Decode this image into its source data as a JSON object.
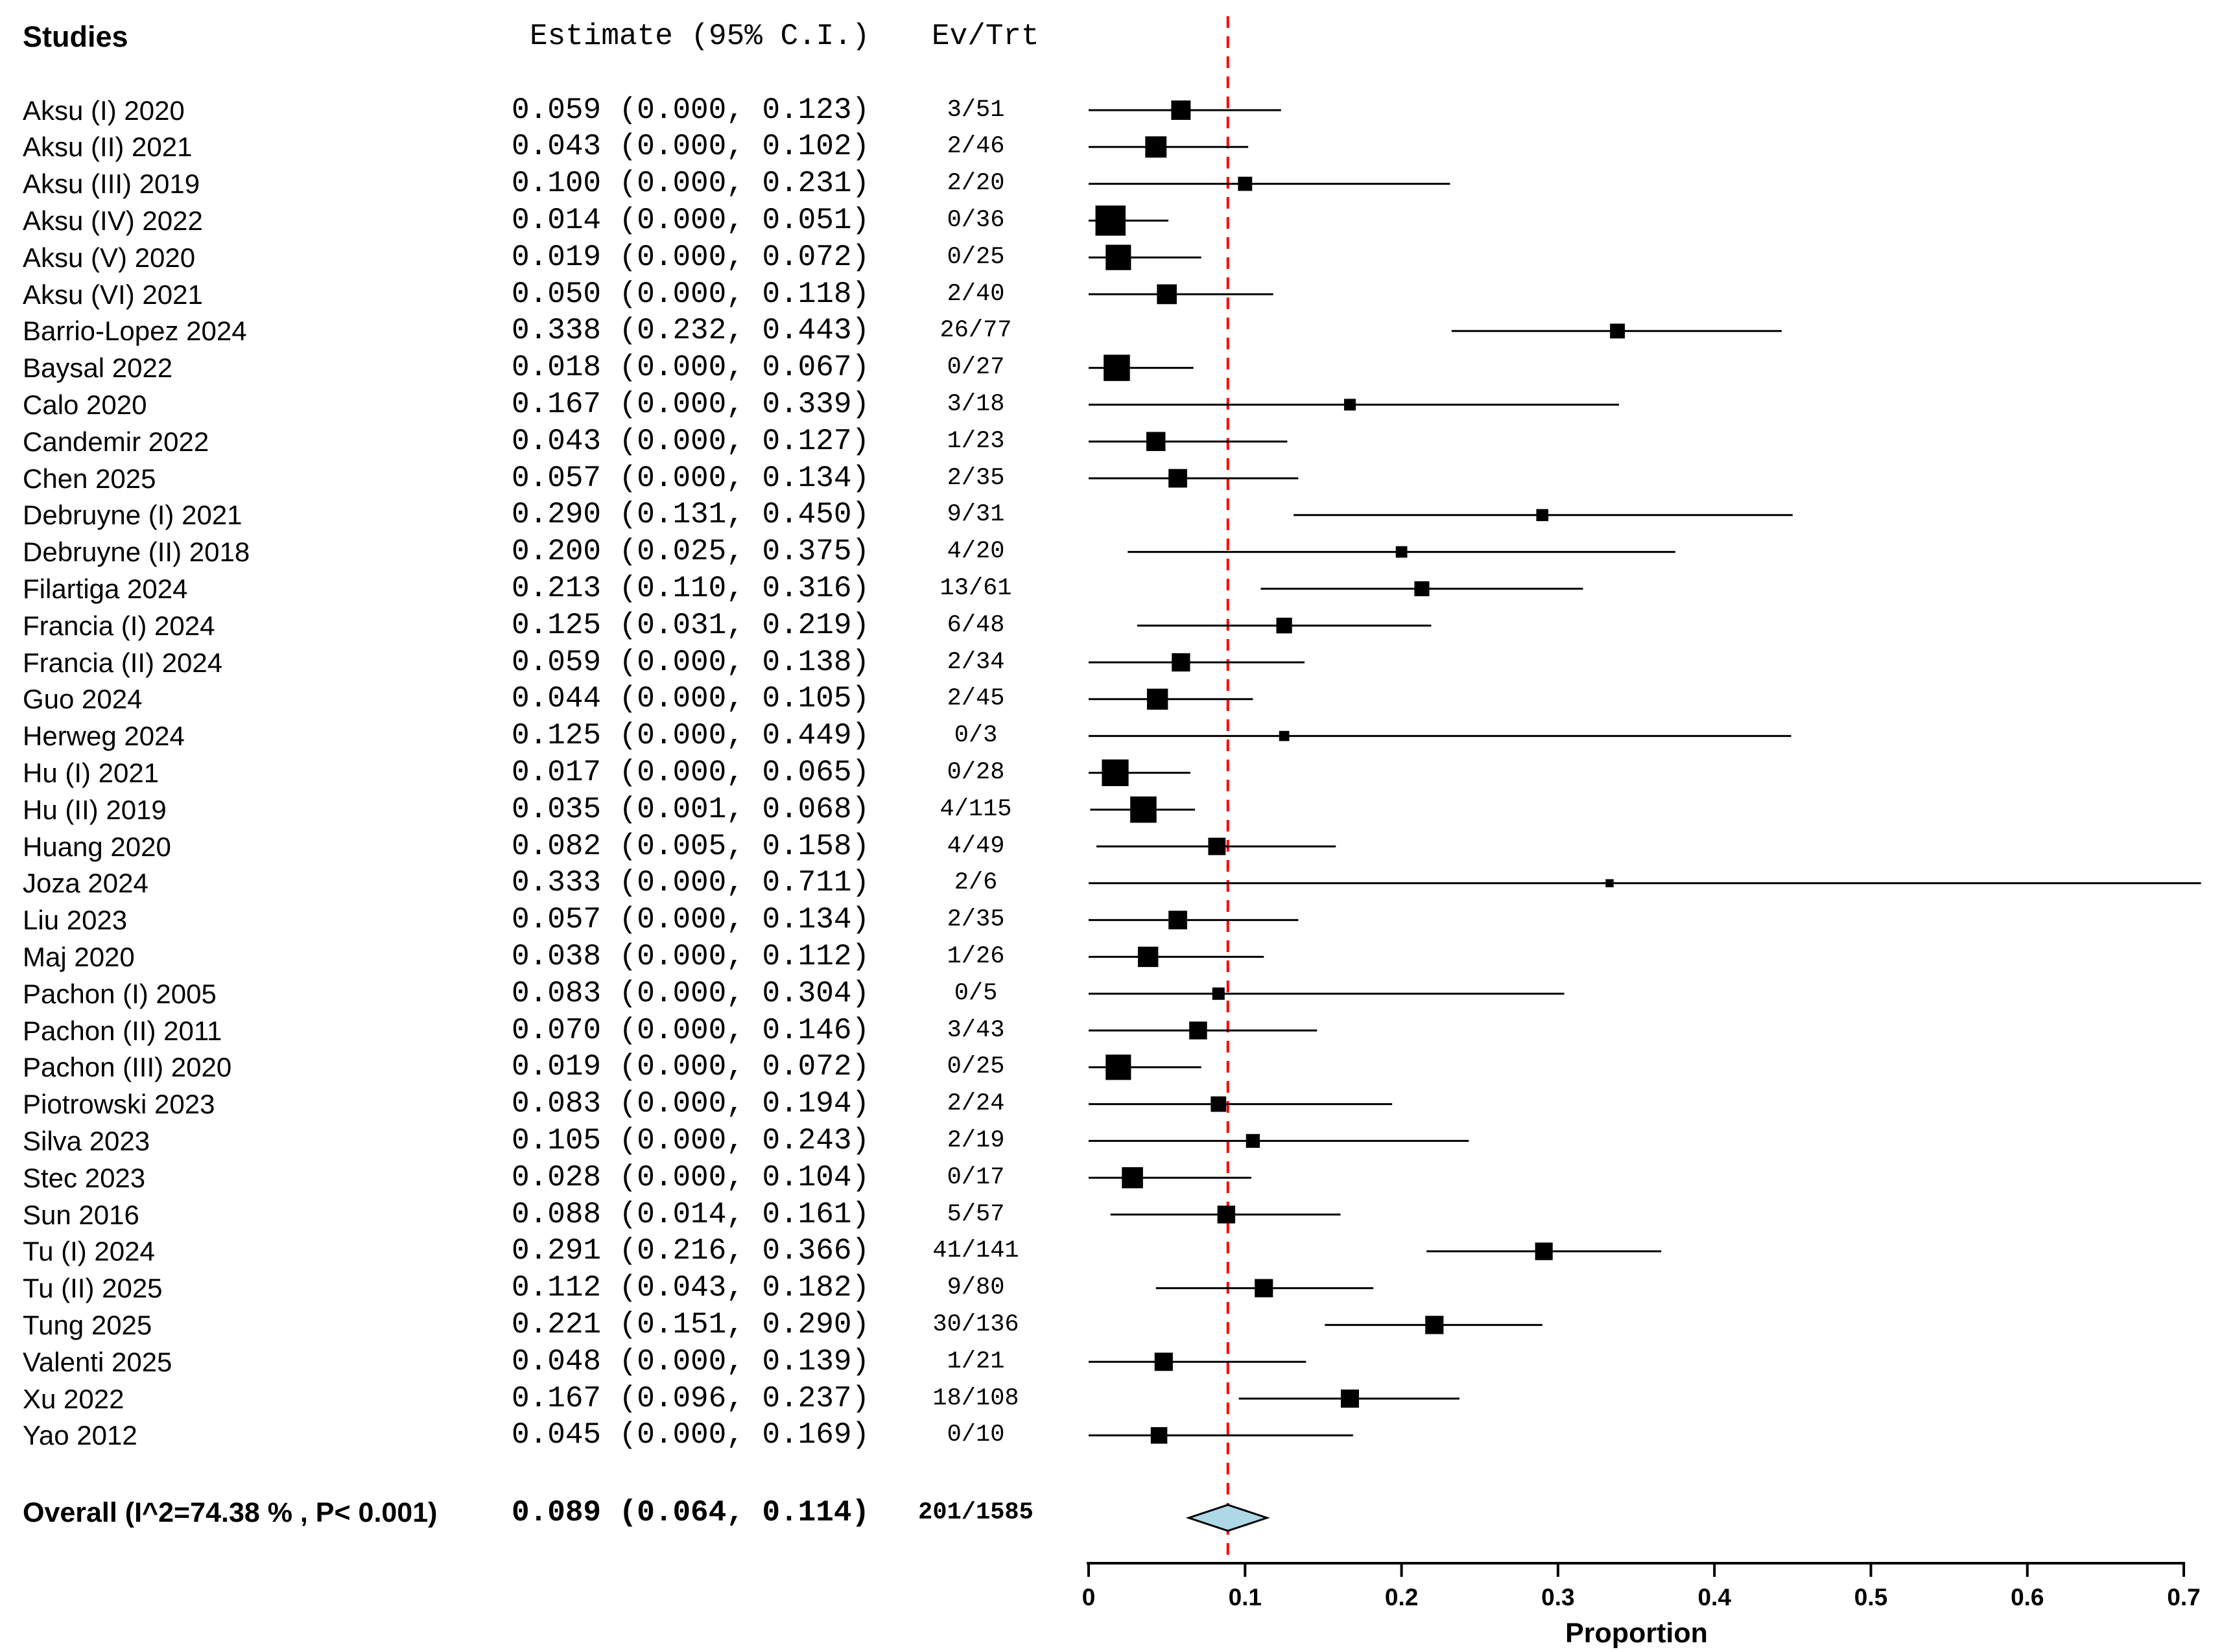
{
  "columns": {
    "studies": "Studies",
    "estimate": "Estimate (95% C.I.)",
    "ev_trt": "Ev/Trt"
  },
  "colors": {
    "background": "#ffffff",
    "text": "#000000",
    "marker": "#000000",
    "ci_line": "#000000",
    "reference_line": "#ff0000",
    "diamond_fill": "#add8e6",
    "diamond_border": "#000000",
    "axis": "#000000"
  },
  "chart_data": {
    "type": "forest",
    "xlabel": "Proportion",
    "xlim": [
      0,
      0.7
    ],
    "x_ticks": [
      0,
      0.1,
      0.2,
      0.3,
      0.4,
      0.5,
      0.6,
      0.7
    ],
    "x_tick_labels": [
      "0",
      "0.1",
      "0.2",
      "0.3",
      "0.4",
      "0.5",
      "0.6",
      "0.7"
    ],
    "reference_line": 0.089,
    "studies": [
      {
        "label": "Aksu (I) 2020",
        "estimate": "0.059",
        "lower": "0.000",
        "upper": "0.123",
        "ev_trt": "3/51"
      },
      {
        "label": "Aksu (II) 2021",
        "estimate": "0.043",
        "lower": "0.000",
        "upper": "0.102",
        "ev_trt": "2/46"
      },
      {
        "label": "Aksu (III) 2019",
        "estimate": "0.100",
        "lower": "0.000",
        "upper": "0.231",
        "ev_trt": "2/20"
      },
      {
        "label": "Aksu (IV) 2022",
        "estimate": "0.014",
        "lower": "0.000",
        "upper": "0.051",
        "ev_trt": "0/36"
      },
      {
        "label": "Aksu (V) 2020",
        "estimate": "0.019",
        "lower": "0.000",
        "upper": "0.072",
        "ev_trt": "0/25"
      },
      {
        "label": "Aksu (VI) 2021",
        "estimate": "0.050",
        "lower": "0.000",
        "upper": "0.118",
        "ev_trt": "2/40"
      },
      {
        "label": "Barrio-Lopez 2024",
        "estimate": "0.338",
        "lower": "0.232",
        "upper": "0.443",
        "ev_trt": "26/77"
      },
      {
        "label": "Baysal 2022",
        "estimate": "0.018",
        "lower": "0.000",
        "upper": "0.067",
        "ev_trt": "0/27"
      },
      {
        "label": "Calo 2020",
        "estimate": "0.167",
        "lower": "0.000",
        "upper": "0.339",
        "ev_trt": "3/18"
      },
      {
        "label": "Candemir 2022",
        "estimate": "0.043",
        "lower": "0.000",
        "upper": "0.127",
        "ev_trt": "1/23"
      },
      {
        "label": "Chen 2025",
        "estimate": "0.057",
        "lower": "0.000",
        "upper": "0.134",
        "ev_trt": "2/35"
      },
      {
        "label": "Debruyne (I) 2021",
        "estimate": "0.290",
        "lower": "0.131",
        "upper": "0.450",
        "ev_trt": "9/31"
      },
      {
        "label": "Debruyne (II) 2018",
        "estimate": "0.200",
        "lower": "0.025",
        "upper": "0.375",
        "ev_trt": "4/20"
      },
      {
        "label": "Filartiga 2024",
        "estimate": "0.213",
        "lower": "0.110",
        "upper": "0.316",
        "ev_trt": "13/61"
      },
      {
        "label": "Francia (I) 2024",
        "estimate": "0.125",
        "lower": "0.031",
        "upper": "0.219",
        "ev_trt": "6/48"
      },
      {
        "label": "Francia (II) 2024",
        "estimate": "0.059",
        "lower": "0.000",
        "upper": "0.138",
        "ev_trt": "2/34"
      },
      {
        "label": "Guo 2024",
        "estimate": "0.044",
        "lower": "0.000",
        "upper": "0.105",
        "ev_trt": "2/45"
      },
      {
        "label": "Herweg 2024",
        "estimate": "0.125",
        "lower": "0.000",
        "upper": "0.449",
        "ev_trt": "0/3"
      },
      {
        "label": "Hu (I) 2021",
        "estimate": "0.017",
        "lower": "0.000",
        "upper": "0.065",
        "ev_trt": "0/28"
      },
      {
        "label": "Hu (II) 2019",
        "estimate": "0.035",
        "lower": "0.001",
        "upper": "0.068",
        "ev_trt": "4/115"
      },
      {
        "label": "Huang 2020",
        "estimate": "0.082",
        "lower": "0.005",
        "upper": "0.158",
        "ev_trt": "4/49"
      },
      {
        "label": "Joza 2024",
        "estimate": "0.333",
        "lower": "0.000",
        "upper": "0.711",
        "ev_trt": "2/6"
      },
      {
        "label": "Liu 2023",
        "estimate": "0.057",
        "lower": "0.000",
        "upper": "0.134",
        "ev_trt": "2/35"
      },
      {
        "label": "Maj 2020",
        "estimate": "0.038",
        "lower": "0.000",
        "upper": "0.112",
        "ev_trt": "1/26"
      },
      {
        "label": "Pachon (I) 2005",
        "estimate": "0.083",
        "lower": "0.000",
        "upper": "0.304",
        "ev_trt": "0/5"
      },
      {
        "label": "Pachon (II) 2011",
        "estimate": "0.070",
        "lower": "0.000",
        "upper": "0.146",
        "ev_trt": "3/43"
      },
      {
        "label": "Pachon (III) 2020",
        "estimate": "0.019",
        "lower": "0.000",
        "upper": "0.072",
        "ev_trt": "0/25"
      },
      {
        "label": "Piotrowski 2023",
        "estimate": "0.083",
        "lower": "0.000",
        "upper": "0.194",
        "ev_trt": "2/24"
      },
      {
        "label": "Silva 2023",
        "estimate": "0.105",
        "lower": "0.000",
        "upper": "0.243",
        "ev_trt": "2/19"
      },
      {
        "label": "Stec 2023",
        "estimate": "0.028",
        "lower": "0.000",
        "upper": "0.104",
        "ev_trt": "0/17"
      },
      {
        "label": "Sun 2016",
        "estimate": "0.088",
        "lower": "0.014",
        "upper": "0.161",
        "ev_trt": "5/57"
      },
      {
        "label": "Tu (I) 2024",
        "estimate": "0.291",
        "lower": "0.216",
        "upper": "0.366",
        "ev_trt": "41/141"
      },
      {
        "label": "Tu (II) 2025",
        "estimate": "0.112",
        "lower": "0.043",
        "upper": "0.182",
        "ev_trt": "9/80"
      },
      {
        "label": "Tung 2025",
        "estimate": "0.221",
        "lower": "0.151",
        "upper": "0.290",
        "ev_trt": "30/136"
      },
      {
        "label": "Valenti 2025",
        "estimate": "0.048",
        "lower": "0.000",
        "upper": "0.139",
        "ev_trt": "1/21"
      },
      {
        "label": "Xu 2022",
        "estimate": "0.167",
        "lower": "0.096",
        "upper": "0.237",
        "ev_trt": "18/108"
      },
      {
        "label": "Yao 2012",
        "estimate": "0.045",
        "lower": "0.000",
        "upper": "0.169",
        "ev_trt": "0/10"
      }
    ],
    "overall": {
      "label": "Overall (I^2=74.38 % , P< 0.001)",
      "estimate": "0.089",
      "lower": "0.064",
      "upper": "0.114",
      "ev_trt": "201/1585"
    }
  }
}
